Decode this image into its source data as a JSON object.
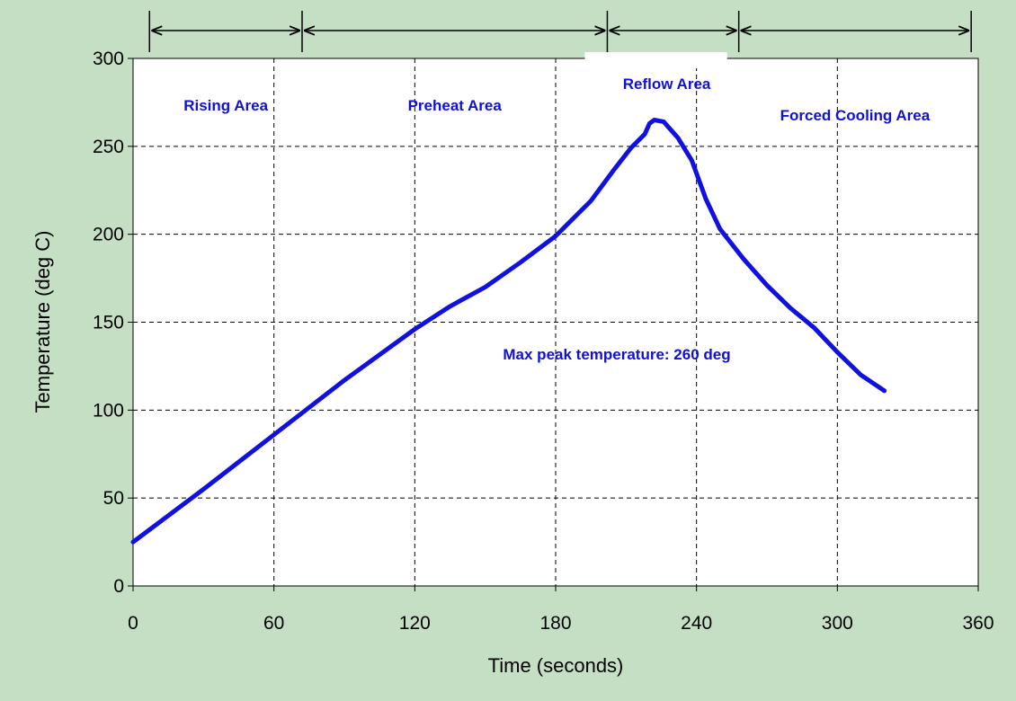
{
  "chart_data": {
    "type": "line",
    "title": "",
    "xlabel": "Time (seconds)",
    "ylabel": "Temperature (deg C)",
    "xlim": [
      0,
      360
    ],
    "ylim": [
      0,
      300
    ],
    "xticks": [
      0,
      60,
      120,
      180,
      240,
      300,
      360
    ],
    "yticks": [
      0,
      50,
      100,
      150,
      200,
      250,
      300
    ],
    "grid": true,
    "line_color": "#1010e0",
    "series": [
      {
        "x": [
          0,
          30,
          60,
          90,
          120,
          135,
          150,
          165,
          180,
          195,
          205,
          212,
          218,
          220,
          222,
          226,
          228,
          232,
          238,
          244,
          250,
          260,
          270,
          280,
          290,
          300,
          310,
          320
        ],
        "y": [
          25,
          55,
          86,
          117,
          146,
          159,
          170,
          184,
          199,
          219,
          237,
          249,
          257,
          263,
          265,
          264,
          261,
          255,
          242,
          220,
          203,
          186,
          171,
          158,
          147,
          133,
          120,
          111
        ]
      }
    ],
    "regions": [
      {
        "label": "Rising Area",
        "start": 7,
        "end": 72
      },
      {
        "label": "Preheat Area",
        "start": 72,
        "end": 202
      },
      {
        "label": "Reflow Area",
        "start": 202,
        "end": 258
      },
      {
        "label": "Forced Cooling Area",
        "start": 258,
        "end": 357
      }
    ],
    "annotations": [
      {
        "text": "Max peak temperature: 260 deg"
      }
    ]
  }
}
